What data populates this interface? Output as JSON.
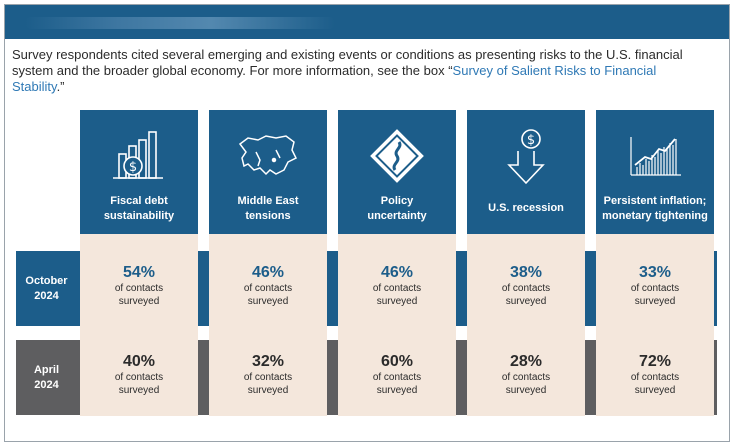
{
  "intro": {
    "text": "Survey respondents cited several emerging and existing events or conditions as presenting risks to the U.S. financial system and the broader global economy. For more information, see the box “",
    "link": "Survey of Salient Risks to Financial Stability",
    "end": ".”"
  },
  "risks": [
    {
      "label_line1": "Fiscal debt",
      "label_line2": "sustainability",
      "icon": "bar-chart-dollar-icon",
      "oct": "54%",
      "apr": "40%"
    },
    {
      "label_line1": "Middle East",
      "label_line2": "tensions",
      "icon": "middle-east-map-icon",
      "oct": "46%",
      "apr": "32%"
    },
    {
      "label_line1": "Policy",
      "label_line2": "uncertainty",
      "icon": "winding-road-sign-icon",
      "oct": "46%",
      "apr": "60%"
    },
    {
      "label_line1": "U.S. recession",
      "label_line2": "",
      "icon": "down-arrow-dollar-icon",
      "oct": "38%",
      "apr": "28%"
    },
    {
      "label_line1": "Persistent inflation;",
      "label_line2": "monetary tightening",
      "icon": "rising-chart-icon",
      "oct": "33%",
      "apr": "72%"
    }
  ],
  "rows": {
    "oct": {
      "line1": "October",
      "line2": "2024"
    },
    "apr": {
      "line1": "April",
      "line2": "2024"
    }
  },
  "cell_sub": {
    "line1": "of contacts",
    "line2": "surveyed"
  },
  "colors": {
    "primary_blue": "#1c5d8a",
    "gray": "#5e5e60",
    "beige": "#f4e7dc",
    "link": "#2f79b5"
  }
}
